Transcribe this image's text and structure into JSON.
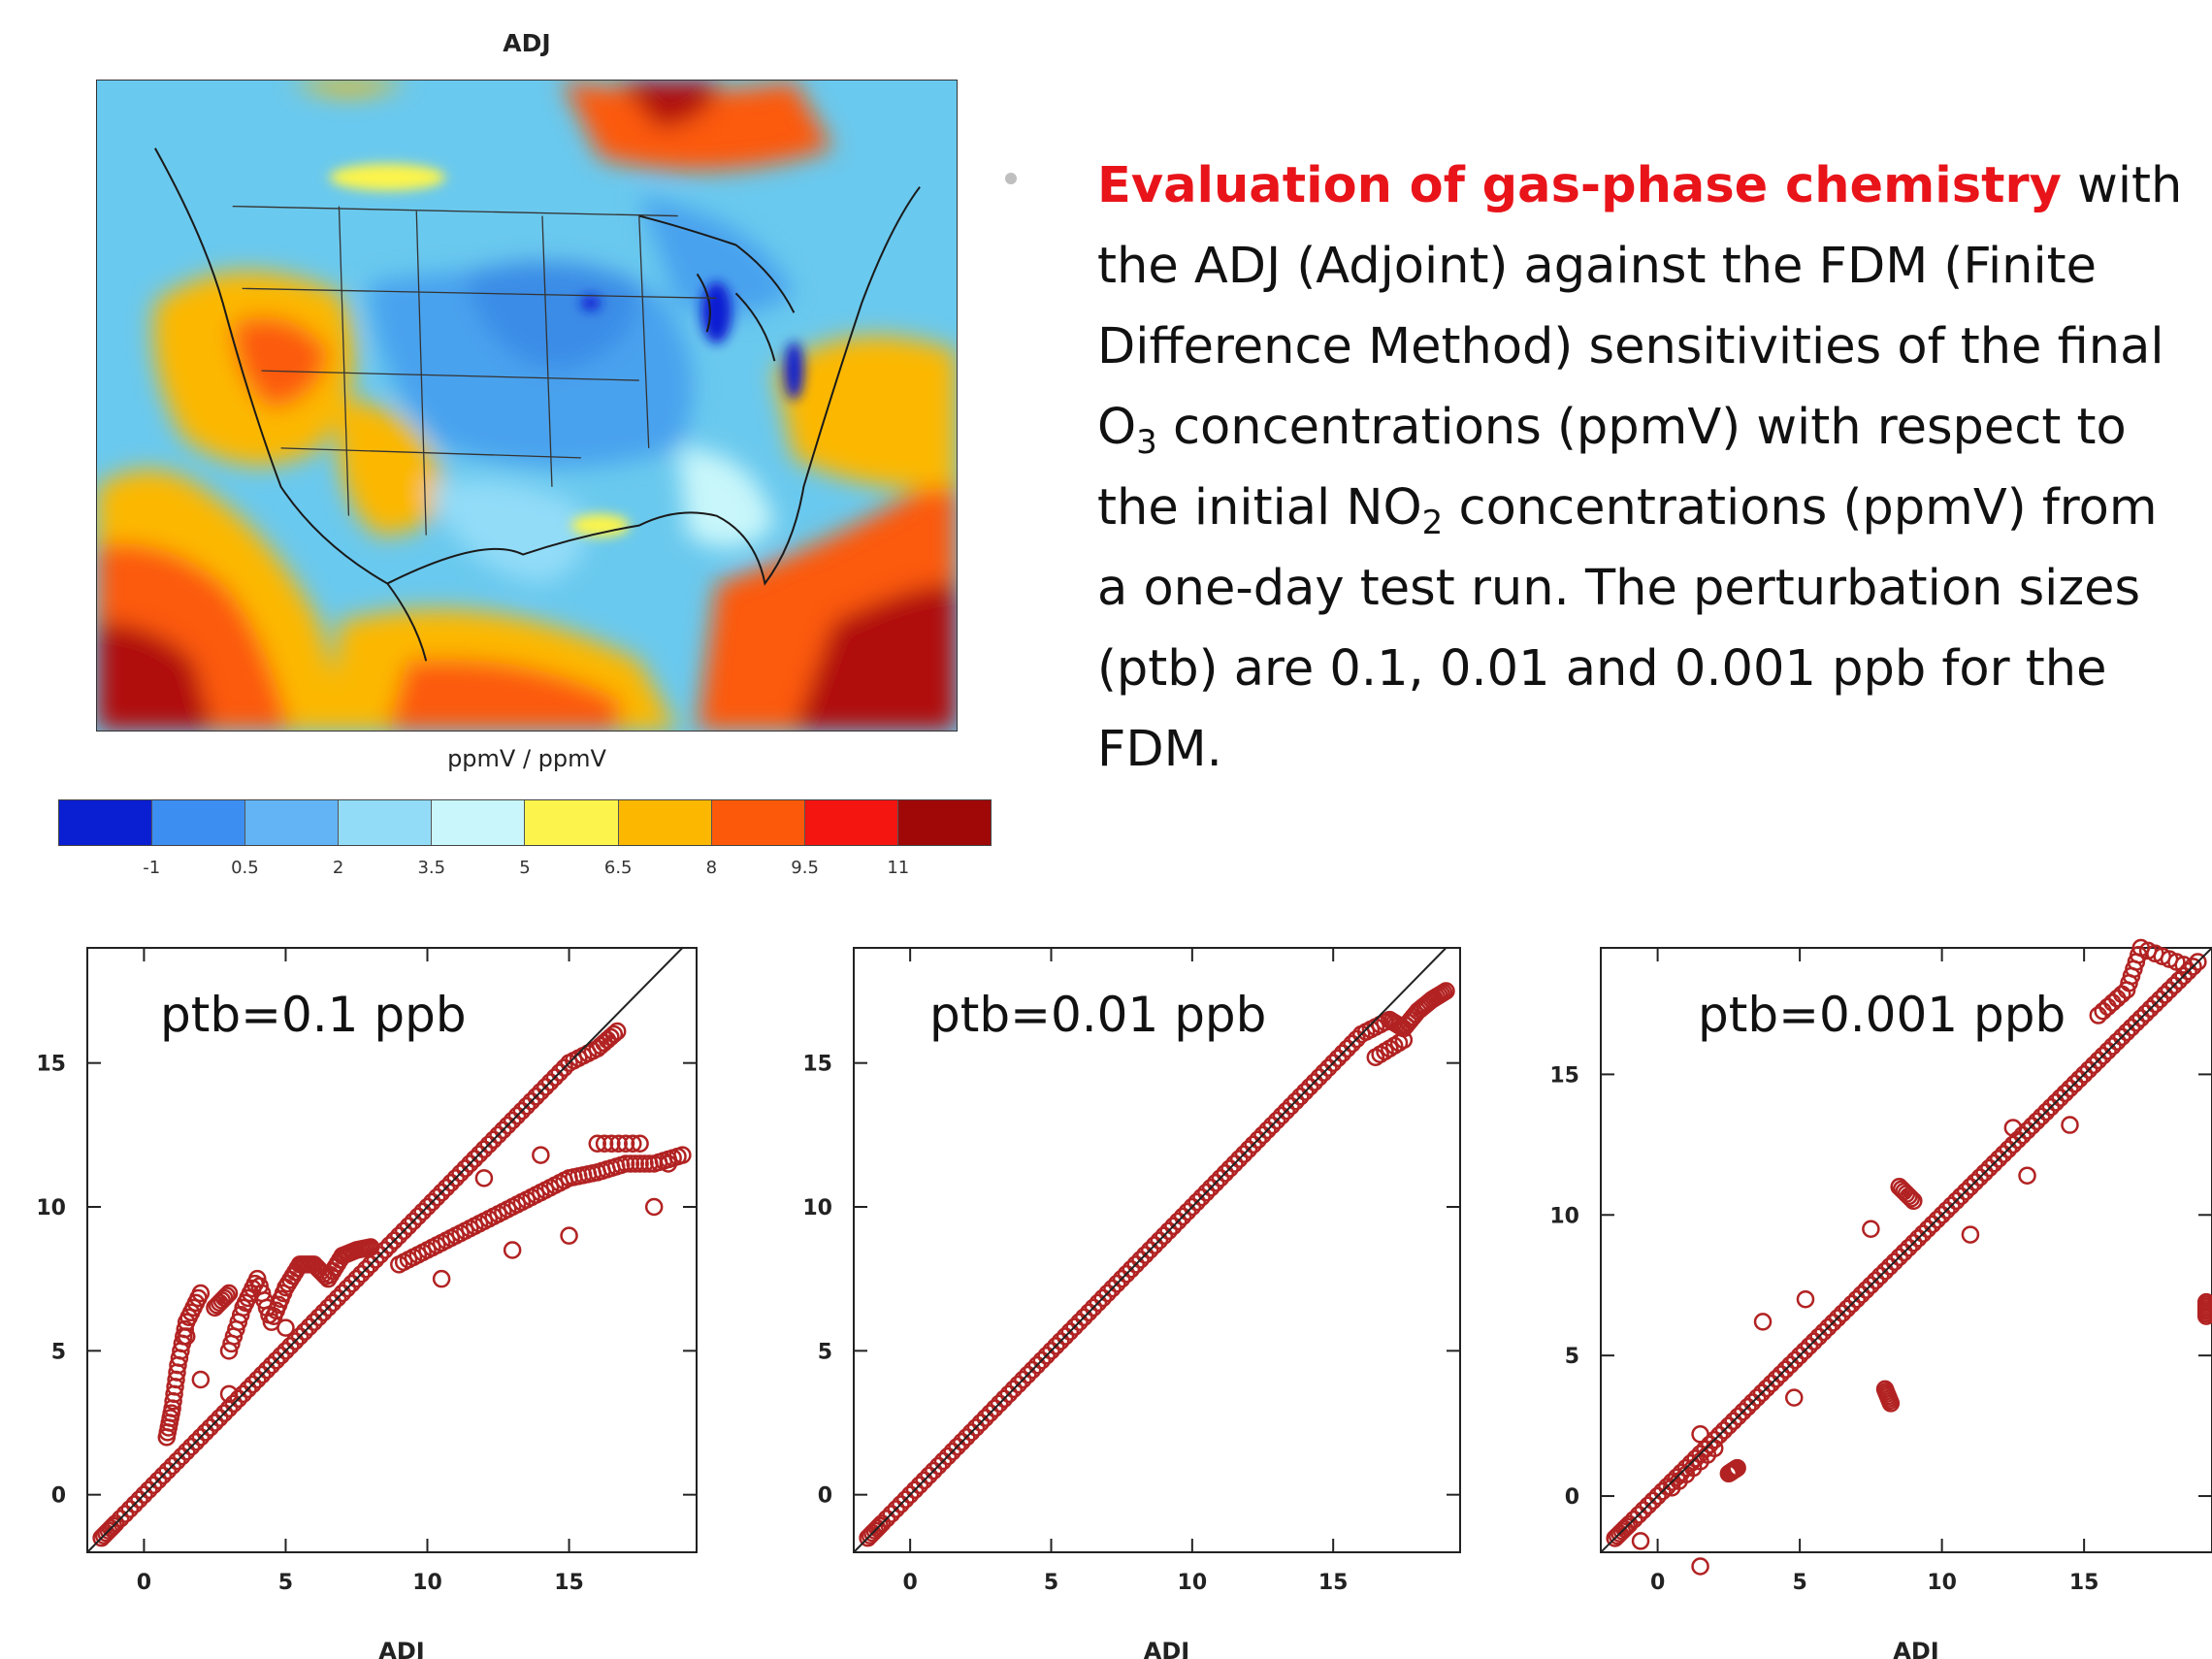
{
  "map": {
    "title": "ADJ",
    "units_label": "ppmV / ppmV",
    "colorbar": {
      "colors": [
        "#0a1ed2",
        "#3c8ef0",
        "#62b4f4",
        "#92dcf8",
        "#c8f6fa",
        "#fcf44c",
        "#fcb800",
        "#fc5a0a",
        "#f41410",
        "#a00808"
      ],
      "tick_labels": [
        "-1",
        "0.5",
        "2",
        "3.5",
        "5",
        "6.5",
        "8",
        "9.5",
        "11"
      ]
    }
  },
  "description": {
    "highlight": "Evaluation of gas-phase chemistry",
    "part1": " with the ADJ (Adjoint) against the FDM (Finite Difference Method) sensitivities of the final O",
    "sub1": "3",
    "part2": " concentrations (ppmV) with respect to the initial NO",
    "sub2": "2",
    "part3": " concentrations (ppmV) from a one-day test run. The perturbation sizes (ptb) are 0.1, 0.01 and 0.001 ppb for the FDM."
  },
  "chart_data": [
    {
      "type": "scatter",
      "title": "ptb=0.1 ppb",
      "xlabel": "ADJ",
      "ylabel": "",
      "x_ticks": [
        "0",
        "5",
        "10",
        "15"
      ],
      "y_ticks": [
        "0",
        "5",
        "10",
        "15"
      ],
      "xlim": [
        -2,
        19.5
      ],
      "ylim": [
        -2,
        19
      ],
      "reference_line": "y = x",
      "marker_color": "#b22222",
      "series": [
        {
          "x": [
            -1.5,
            -1,
            0,
            1,
            2,
            3,
            4,
            5,
            6,
            7,
            8,
            9,
            10,
            11,
            12,
            13,
            14,
            15,
            16,
            16.7,
            18.5
          ],
          "y": [
            -1.5,
            -1,
            0,
            1,
            2,
            3,
            4,
            5,
            6,
            7,
            8,
            9,
            10,
            11,
            12,
            13,
            14,
            15,
            15.5,
            16.1,
            11.5
          ]
        },
        {
          "x": [
            0.8,
            1,
            1.2,
            1.5,
            2,
            2,
            2.5,
            3,
            3,
            3.5,
            4,
            4.5,
            5,
            5.5,
            6,
            6.5,
            7,
            7.5,
            8,
            1.5,
            3,
            5
          ],
          "y": [
            2,
            3,
            4.5,
            6,
            7,
            4,
            6.5,
            7,
            5,
            6.5,
            7.5,
            6,
            7.2,
            8,
            8,
            7.5,
            8.3,
            8.5,
            8.6,
            5.5,
            3.5,
            5.8
          ]
        },
        {
          "x": [
            9,
            10,
            11,
            12,
            13,
            14,
            15,
            16,
            17,
            18,
            19,
            12,
            14,
            16,
            17.5,
            10.5,
            13,
            15,
            18
          ],
          "y": [
            8,
            8.5,
            9,
            9.5,
            10,
            10.5,
            11,
            11.2,
            11.5,
            11.5,
            11.8,
            11,
            11.8,
            12.2,
            12.2,
            7.5,
            8.5,
            9,
            10
          ]
        }
      ]
    },
    {
      "type": "scatter",
      "title": "ptb=0.01 ppb",
      "xlabel": "ADJ",
      "ylabel": "",
      "x_ticks": [
        "0",
        "5",
        "10",
        "15"
      ],
      "y_ticks": [
        "0",
        "5",
        "10",
        "15"
      ],
      "xlim": [
        -2,
        19.5
      ],
      "ylim": [
        -2,
        19
      ],
      "reference_line": "y = x",
      "marker_color": "#b22222",
      "series": [
        {
          "x": [
            -1.5,
            -1,
            0,
            1,
            2,
            3,
            4,
            5,
            6,
            7,
            8,
            9,
            10,
            11,
            12,
            13,
            14,
            15,
            16,
            17,
            17.5,
            18,
            18.5,
            19,
            16.5,
            17.5
          ],
          "y": [
            -1.5,
            -1,
            0,
            1,
            2,
            3,
            4,
            5,
            6,
            7,
            8,
            9,
            10,
            11,
            12,
            13,
            14,
            15,
            16,
            16.5,
            16.2,
            16.8,
            17.2,
            17.5,
            15.2,
            15.8
          ]
        }
      ]
    },
    {
      "type": "scatter",
      "title": "ptb=0.001 ppb",
      "xlabel": "ADJ",
      "ylabel": "",
      "x_ticks": [
        "0",
        "5",
        "10",
        "15"
      ],
      "y_ticks": [
        "0",
        "5",
        "10",
        "15"
      ],
      "xlim": [
        -2,
        19.5
      ],
      "ylim": [
        -2,
        19.5
      ],
      "reference_line": "y = x",
      "marker_color": "#b22222",
      "series": [
        {
          "x": [
            -1.5,
            -1,
            0,
            1,
            2,
            3,
            4,
            5,
            6,
            7,
            8,
            9,
            10,
            11,
            12,
            13,
            14,
            15,
            16,
            17,
            18,
            19
          ],
          "y": [
            -1.5,
            -1,
            0,
            1,
            2,
            3,
            4,
            5,
            6,
            7,
            8,
            9,
            10,
            11,
            12,
            13,
            14,
            15,
            16,
            17,
            18,
            19
          ]
        },
        {
          "x": [
            -0.6,
            1.5,
            2.5,
            2.8,
            3.7,
            4.8,
            5.2,
            7.5,
            8,
            8.2,
            8.5,
            9,
            11,
            12.5,
            13,
            14.5,
            15.5,
            16.5,
            17,
            18.5,
            19.3,
            19.3,
            1.5,
            0.5,
            2
          ],
          "y": [
            -1.6,
            -2.5,
            0.8,
            1,
            6.2,
            3.5,
            7,
            9.5,
            3.8,
            3.3,
            11,
            10.5,
            9.3,
            13.1,
            11.4,
            13.2,
            17.1,
            18,
            19.5,
            18.9,
            6.4,
            6.9,
            2.2,
            0.3,
            1.7
          ]
        }
      ]
    }
  ]
}
